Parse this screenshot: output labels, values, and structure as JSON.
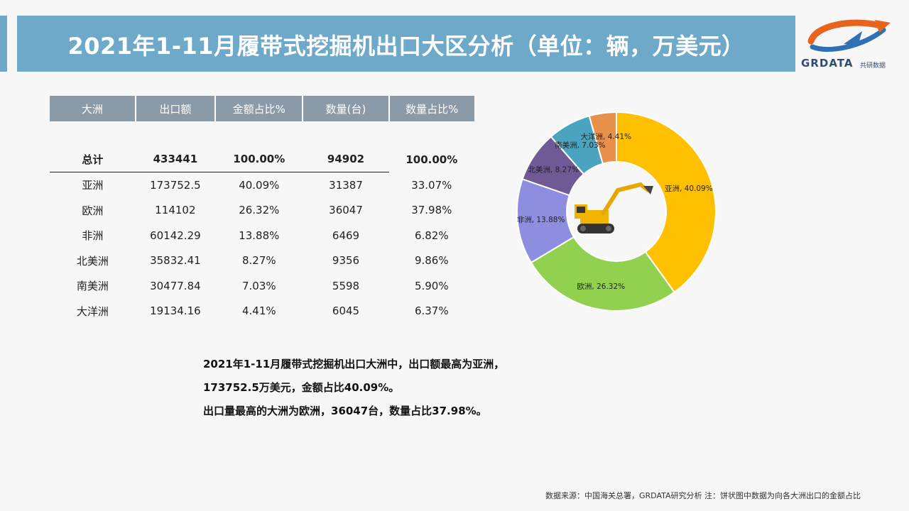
{
  "header": {
    "title": "2021年1-11月履带式挖掘机出口大区分析（单位：辆，万美元）",
    "logo_text": "GRDATA",
    "logo_cn": "共研数据"
  },
  "table": {
    "columns": [
      "大洲",
      "出口额",
      "金额占比%",
      "数量(台)",
      "数量占比%"
    ],
    "total": [
      "总计",
      "433441",
      "100.00%",
      "94902",
      "100.00%"
    ],
    "rows": [
      [
        "亚洲",
        "173752.5",
        "40.09%",
        "31387",
        "33.07%"
      ],
      [
        "欧洲",
        "114102",
        "26.32%",
        "36047",
        "37.98%"
      ],
      [
        "非洲",
        "60142.29",
        "13.88%",
        "6469",
        "6.82%"
      ],
      [
        "北美洲",
        "35832.41",
        "8.27%",
        "9356",
        "9.86%"
      ],
      [
        "南美洲",
        "30477.84",
        "7.03%",
        "5598",
        "5.90%"
      ],
      [
        "大洋洲",
        "19134.16",
        "4.41%",
        "6045",
        "6.37%"
      ]
    ]
  },
  "chart_data": {
    "type": "pie",
    "title": "",
    "donut": true,
    "slices": [
      {
        "label": "亚洲",
        "value": 40.09,
        "display": "亚洲, 40.09%",
        "color": "#ffc000"
      },
      {
        "label": "欧洲",
        "value": 26.32,
        "display": "欧洲, 26.32%",
        "color": "#92d050"
      },
      {
        "label": "非洲",
        "value": 13.88,
        "display": "非洲, 13.88%",
        "color": "#8e8ee0"
      },
      {
        "label": "北美洲",
        "value": 8.27,
        "display": "北美洲, 8.27%",
        "color": "#6f5a96"
      },
      {
        "label": "南美洲",
        "value": 7.03,
        "display": "南美洲, 7.03%",
        "color": "#4aa3bf"
      },
      {
        "label": "大洋洲",
        "value": 4.41,
        "display": "大洋洲, 4.41%",
        "color": "#e8914a"
      }
    ]
  },
  "summary": {
    "line1": "2021年1-11月履带式挖掘机出口大洲中，出口额最高为亚洲，",
    "line2": "173752.5万美元，金额占比40.09%。",
    "line3": "出口量最高的大洲为欧洲，36047台，数量占比37.98%。"
  },
  "footnote": "数据来源：中国海关总署，GRDATA研究分析  注：饼状图中数据为向各大洲出口的金额占比"
}
